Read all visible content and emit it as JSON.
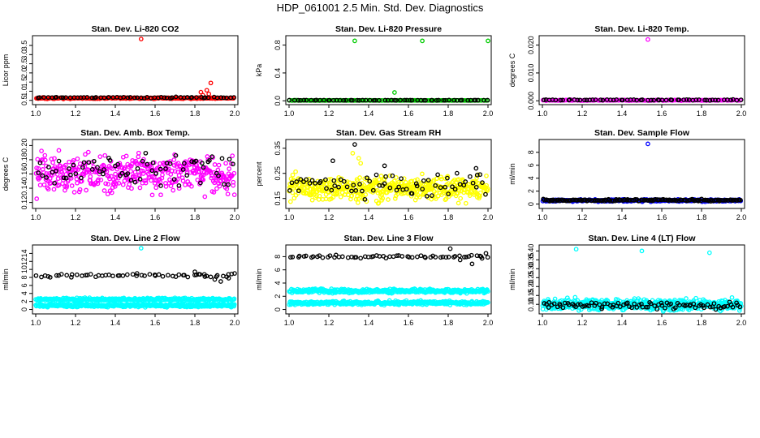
{
  "figure": {
    "title": "HDP_061001  2.5 Min. Std. Dev. Diagnostics"
  },
  "chart_data": [
    {
      "type": "scatter",
      "title": "Stan. Dev. Li-820 CO2",
      "xlabel": "",
      "ylabel": "Licor ppm",
      "xlim": [
        1.0,
        2.0
      ],
      "ylim": [
        0.4,
        3.9
      ],
      "x_ticks": [
        "1.0",
        "1.2",
        "1.4",
        "1.6",
        "1.8",
        "2.0"
      ],
      "y_ticks": [
        "0.5",
        "1.0",
        "1.5",
        "2.0",
        "2.5",
        "3.0",
        "3.5"
      ],
      "grid": false,
      "series": [
        {
          "color": "#ff0000",
          "baseline": 0.62,
          "spread": 0.05,
          "n": 190,
          "x": [
            1.53,
            1.83,
            1.86,
            1.88,
            1.84,
            1.87
          ],
          "y": [
            3.85,
            0.95,
            1.05,
            1.45,
            0.78,
            0.85
          ]
        },
        {
          "color": "#000000",
          "baseline": 0.65,
          "spread": 0.05,
          "n": 60,
          "x": [],
          "y": []
        }
      ]
    },
    {
      "type": "scatter",
      "title": "Stan. Dev. Li-820 Pressure",
      "xlabel": "",
      "ylabel": "kPa",
      "xlim": [
        1.0,
        2.0
      ],
      "ylim": [
        -0.02,
        0.9
      ],
      "x_ticks": [
        "1.0",
        "1.2",
        "1.4",
        "1.6",
        "1.8",
        "2.0"
      ],
      "y_ticks": [
        "0.0",
        "0.4",
        "0.8"
      ],
      "grid": false,
      "series": [
        {
          "color": "#00cc00",
          "baseline": 0.006,
          "spread": 0.003,
          "n": 150,
          "x": [
            1.33,
            1.67,
            2.0,
            1.53
          ],
          "y": [
            0.86,
            0.86,
            0.86,
            0.12
          ]
        },
        {
          "color": "#000000",
          "baseline": 0.008,
          "spread": 0.003,
          "n": 60,
          "x": [],
          "y": []
        }
      ]
    },
    {
      "type": "scatter",
      "title": "Stan. Dev. Li-820 Temp.",
      "xlabel": "",
      "ylabel": "degrees C",
      "xlim": [
        1.0,
        2.0
      ],
      "ylim": [
        -0.0005,
        0.0225
      ],
      "x_ticks": [
        "1.0",
        "1.2",
        "1.4",
        "1.6",
        "1.8",
        "2.0"
      ],
      "y_ticks": [
        "0.000",
        "0.010",
        "0.020"
      ],
      "grid": false,
      "series": [
        {
          "color": "#ff00ff",
          "baseline": 0.0002,
          "spread": 0.0002,
          "n": 150,
          "x": [
            1.53,
            1.59
          ],
          "y": [
            0.022,
            0.0003
          ]
        },
        {
          "color": "#000000",
          "baseline": 0.0003,
          "spread": 0.0002,
          "n": 60,
          "x": [],
          "y": []
        }
      ]
    },
    {
      "type": "scatter",
      "title": "Stan. Dev. Amb. Box Temp.",
      "xlabel": "",
      "ylabel": "degrees C",
      "xlim": [
        1.0,
        2.0
      ],
      "ylim": [
        0.115,
        0.205
      ],
      "x_ticks": [
        "1.0",
        "1.2",
        "1.4",
        "1.6",
        "1.8",
        "2.0"
      ],
      "y_ticks": [
        "0.12",
        "0.14",
        "0.16",
        "0.18",
        "0.20"
      ],
      "grid": false,
      "series": [
        {
          "color": "#ff00ff",
          "baseline": 0.16,
          "spread": 0.038,
          "n": 430,
          "x": [],
          "y": []
        },
        {
          "color": "#000000",
          "baseline": 0.165,
          "spread": 0.03,
          "n": 70,
          "x": [],
          "y": []
        }
      ]
    },
    {
      "type": "scatter",
      "title": "Stan. Dev. Gas Stream RH",
      "xlabel": "",
      "ylabel": "percent",
      "xlim": [
        1.0,
        2.0
      ],
      "ylim": [
        0.12,
        0.375
      ],
      "x_ticks": [
        "1.0",
        "1.2",
        "1.4",
        "1.6",
        "1.8",
        "2.0"
      ],
      "y_ticks": [
        "0.15",
        "0.25",
        "0.35"
      ],
      "grid": false,
      "series": [
        {
          "color": "#ffff00",
          "baseline": 0.19,
          "spread": 0.07,
          "n": 500,
          "x": [
            1.32,
            1.35,
            1.36
          ],
          "y": [
            0.33,
            0.31,
            0.29
          ]
        },
        {
          "color": "#000000",
          "baseline": 0.2,
          "spread": 0.065,
          "n": 70,
          "x": [
            1.33,
            1.22,
            1.48,
            1.94
          ],
          "y": [
            0.365,
            0.3,
            0.28,
            0.27
          ]
        }
      ]
    },
    {
      "type": "scatter",
      "title": "Stan. Dev. Sample Flow",
      "xlabel": "",
      "ylabel": "ml/min",
      "xlim": [
        1.0,
        2.0
      ],
      "ylim": [
        -0.3,
        9.6
      ],
      "x_ticks": [
        "1.0",
        "1.2",
        "1.4",
        "1.6",
        "1.8",
        "2.0"
      ],
      "y_ticks": [
        "0",
        "2",
        "4",
        "6",
        "8"
      ],
      "grid": false,
      "series": [
        {
          "color": "#0000ff",
          "baseline": 0.55,
          "spread": 0.25,
          "n": 300,
          "x": [
            1.53
          ],
          "y": [
            9.3
          ]
        },
        {
          "color": "#000000",
          "baseline": 0.6,
          "spread": 0.2,
          "n": 150,
          "x": [],
          "y": []
        }
      ]
    },
    {
      "type": "scatter",
      "title": "Stan. Dev. Line 2 Flow",
      "xlabel": "",
      "ylabel": "ml/min",
      "xlim": [
        1.0,
        2.0
      ],
      "ylim": [
        -0.5,
        15.5
      ],
      "x_ticks": [
        "1.0",
        "1.2",
        "1.4",
        "1.6",
        "1.8",
        "2.0"
      ],
      "y_ticks": [
        "0",
        "2",
        "4",
        "6",
        "8",
        "10",
        "12",
        "14"
      ],
      "grid": false,
      "series": [
        {
          "color": "#00ffff",
          "baseline": 1.0,
          "spread": 0.6,
          "n": 420,
          "x": [
            1.53
          ],
          "y": [
            15.3
          ]
        },
        {
          "color": "#00ffff",
          "baseline": 2.5,
          "spread": 0.5,
          "n": 300,
          "x": [],
          "y": []
        },
        {
          "color": "#000000",
          "baseline": 8.5,
          "spread": 0.6,
          "n": 55,
          "x": [
            1.8,
            1.82,
            1.85,
            1.9,
            1.93,
            1.97,
            2.0
          ],
          "y": [
            9.4,
            8.8,
            8.2,
            7.5,
            7.0,
            7.8,
            9.0
          ]
        }
      ]
    },
    {
      "type": "scatter",
      "title": "Stan. Dev. Line 3 Flow",
      "xlabel": "",
      "ylabel": "ml/min",
      "xlim": [
        1.0,
        2.0
      ],
      "ylim": [
        -0.3,
        9.4
      ],
      "x_ticks": [
        "1.0",
        "1.2",
        "1.4",
        "1.6",
        "1.8",
        "2.0"
      ],
      "y_ticks": [
        "0",
        "2",
        "4",
        "6",
        "8"
      ],
      "grid": false,
      "series": [
        {
          "color": "#00ffff",
          "baseline": 1.0,
          "spread": 0.4,
          "n": 420,
          "x": [],
          "y": []
        },
        {
          "color": "#00ffff",
          "baseline": 2.8,
          "spread": 0.45,
          "n": 420,
          "x": [],
          "y": []
        },
        {
          "color": "#000000",
          "baseline": 8.0,
          "spread": 0.35,
          "n": 60,
          "x": [
            1.81,
            1.86,
            1.92,
            1.96,
            1.99
          ],
          "y": [
            9.2,
            7.5,
            6.9,
            8.1,
            8.5
          ]
        }
      ]
    },
    {
      "type": "scatter",
      "title": "Stan. Dev. Line 4 (LT) Flow",
      "xlabel": "",
      "ylabel": "ml/min",
      "xlim": [
        1.0,
        2.0
      ],
      "ylim": [
        0.06,
        0.42
      ],
      "x_ticks": [
        "1.0",
        "1.2",
        "1.4",
        "1.6",
        "1.8",
        "2.0"
      ],
      "y_ticks": [
        "0.10",
        "0.15",
        "0.20",
        "0.25",
        "0.30",
        "0.35",
        "0.40"
      ],
      "grid": false,
      "series": [
        {
          "color": "#00ffff",
          "baseline": 0.1,
          "spread": 0.045,
          "n": 520,
          "x": [
            1.17,
            1.5,
            1.84
          ],
          "y": [
            0.41,
            0.4,
            0.39
          ]
        },
        {
          "color": "#000000",
          "baseline": 0.095,
          "spread": 0.03,
          "n": 90,
          "x": [],
          "y": []
        }
      ]
    }
  ]
}
